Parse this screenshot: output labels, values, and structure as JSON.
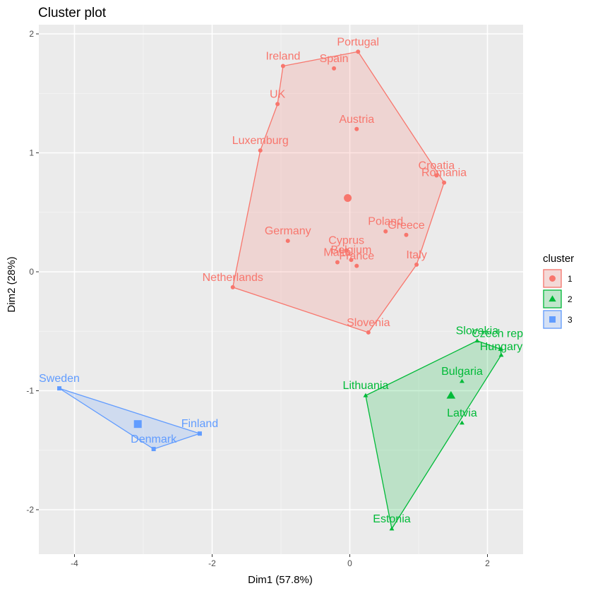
{
  "chart_data": {
    "type": "scatter",
    "title": "Cluster plot",
    "xlabel": "Dim1 (57.8%)",
    "ylabel": "Dim2 (28%)",
    "xlim": [
      -4.5,
      2.5
    ],
    "ylim": [
      -2.35,
      2.05
    ],
    "x_ticks": [
      -4,
      -2,
      0,
      2
    ],
    "y_ticks": [
      -2,
      -1,
      0,
      1,
      2
    ],
    "grid": true,
    "legend": {
      "title": "cluster",
      "position": "right",
      "entries": [
        "1",
        "2",
        "3"
      ]
    },
    "clusters": [
      {
        "name": "1",
        "color": "#F8766D",
        "marker": "circle",
        "center": [
          -0.03,
          0.62
        ],
        "hull": [
          "Portugal",
          "Romania",
          "Italy",
          "Slovenia",
          "Netherlands",
          "Luxemburg",
          "UK",
          "Ireland"
        ],
        "points": [
          {
            "label": "Portugal",
            "x": 0.12,
            "y": 1.85
          },
          {
            "label": "Ireland",
            "x": -0.97,
            "y": 1.73
          },
          {
            "label": "Spain",
            "x": -0.23,
            "y": 1.71
          },
          {
            "label": "UK",
            "x": -1.05,
            "y": 1.41
          },
          {
            "label": "Austria",
            "x": 0.1,
            "y": 1.2
          },
          {
            "label": "Luxemburg",
            "x": -1.3,
            "y": 1.02
          },
          {
            "label": "Croatia",
            "x": 1.26,
            "y": 0.81
          },
          {
            "label": "Romania",
            "x": 1.37,
            "y": 0.75
          },
          {
            "label": "Poland",
            "x": 0.52,
            "y": 0.34
          },
          {
            "label": "Greece",
            "x": 0.82,
            "y": 0.31
          },
          {
            "label": "Germany",
            "x": -0.9,
            "y": 0.26
          },
          {
            "label": "Cyprus",
            "x": -0.05,
            "y": 0.18
          },
          {
            "label": "Belgium",
            "x": 0.02,
            "y": 0.1
          },
          {
            "label": "Malta",
            "x": -0.18,
            "y": 0.08
          },
          {
            "label": "France",
            "x": 0.1,
            "y": 0.05
          },
          {
            "label": "Italy",
            "x": 0.97,
            "y": 0.06
          },
          {
            "label": "Netherlands",
            "x": -1.7,
            "y": -0.13
          },
          {
            "label": "Slovenia",
            "x": 0.27,
            "y": -0.51
          }
        ]
      },
      {
        "name": "2",
        "color": "#00BA38",
        "marker": "triangle",
        "center": [
          1.47,
          -1.04
        ],
        "hull": [
          "Slovakia",
          "Czech republic",
          "Hungary",
          "Estonia",
          "Lithuania"
        ],
        "points": [
          {
            "label": "Slovakia",
            "x": 1.85,
            "y": -0.58
          },
          {
            "label": "Czech republic",
            "x": 2.19,
            "y": -0.65
          },
          {
            "label": "Hungary",
            "x": 2.2,
            "y": -0.7
          },
          {
            "label": "Bulgaria",
            "x": 1.63,
            "y": -0.92
          },
          {
            "label": "Lithuania",
            "x": 0.23,
            "y": -1.04
          },
          {
            "label": "Latvia",
            "x": 1.63,
            "y": -1.27
          },
          {
            "label": "Estonia",
            "x": 0.61,
            "y": -2.16
          }
        ]
      },
      {
        "name": "3",
        "color": "#619CFF",
        "marker": "square",
        "center": [
          -3.08,
          -1.28
        ],
        "hull": [
          "Sweden",
          "Finland",
          "Denmark"
        ],
        "points": [
          {
            "label": "Sweden",
            "x": -4.22,
            "y": -0.98
          },
          {
            "label": "Finland",
            "x": -2.18,
            "y": -1.36
          },
          {
            "label": "Denmark",
            "x": -2.85,
            "y": -1.49
          }
        ]
      }
    ]
  },
  "label_overrides": {
    "Czech republic": "Czech repu",
    "Hungary": "Hungary"
  }
}
